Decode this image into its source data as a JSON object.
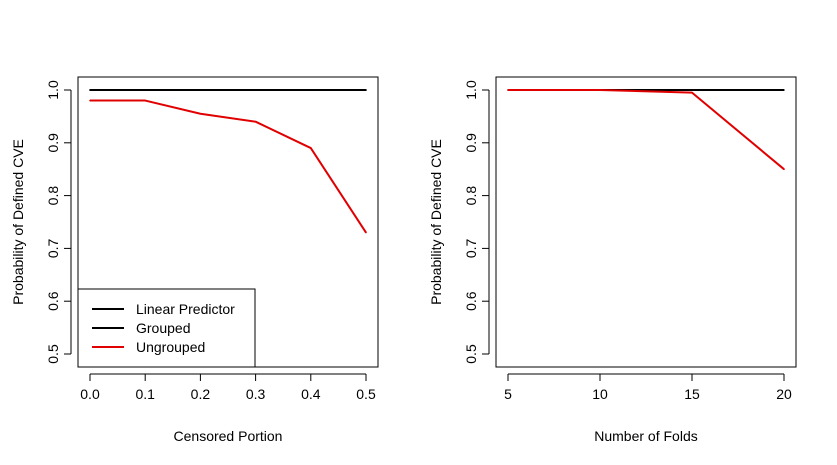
{
  "chart_data": [
    {
      "type": "line",
      "title": "",
      "xlabel": "Censored Portion",
      "ylabel": "Probability of Defined CVE",
      "xlim": [
        0.0,
        0.5
      ],
      "ylim": [
        0.5,
        1.0
      ],
      "x_ticks": [
        "0.0",
        "0.1",
        "0.2",
        "0.3",
        "0.4",
        "0.5"
      ],
      "y_ticks": [
        "0.5",
        "0.6",
        "0.7",
        "0.8",
        "0.9",
        "1.0"
      ],
      "x": [
        0.0,
        0.1,
        0.2,
        0.3,
        0.4,
        0.5
      ],
      "series": [
        {
          "name": "Linear Predictor",
          "color": "#000000",
          "values": [
            1.0,
            1.0,
            1.0,
            1.0,
            1.0,
            1.0
          ]
        },
        {
          "name": "Grouped",
          "color": "#000000",
          "values": [
            1.0,
            1.0,
            1.0,
            1.0,
            1.0,
            1.0
          ]
        },
        {
          "name": "Ungrouped",
          "color": "#e00000",
          "values": [
            0.98,
            0.98,
            0.955,
            0.94,
            0.89,
            0.73
          ]
        }
      ],
      "legend_position": "bottom-left",
      "grid": false
    },
    {
      "type": "line",
      "title": "",
      "xlabel": "Number of Folds",
      "ylabel": "Probability of Defined CVE",
      "xlim": [
        5,
        20
      ],
      "ylim": [
        0.5,
        1.0
      ],
      "x_ticks": [
        "5",
        "10",
        "15",
        "20"
      ],
      "y_ticks": [
        "0.5",
        "0.6",
        "0.7",
        "0.8",
        "0.9",
        "1.0"
      ],
      "x": [
        5,
        10,
        15,
        20
      ],
      "series": [
        {
          "color": "#000000",
          "values": [
            1.0,
            1.0,
            1.0,
            1.0
          ]
        },
        {
          "color": "#e00000",
          "values": [
            1.0,
            1.0,
            0.995,
            0.85
          ]
        }
      ],
      "legend_position": "none",
      "grid": false
    }
  ]
}
